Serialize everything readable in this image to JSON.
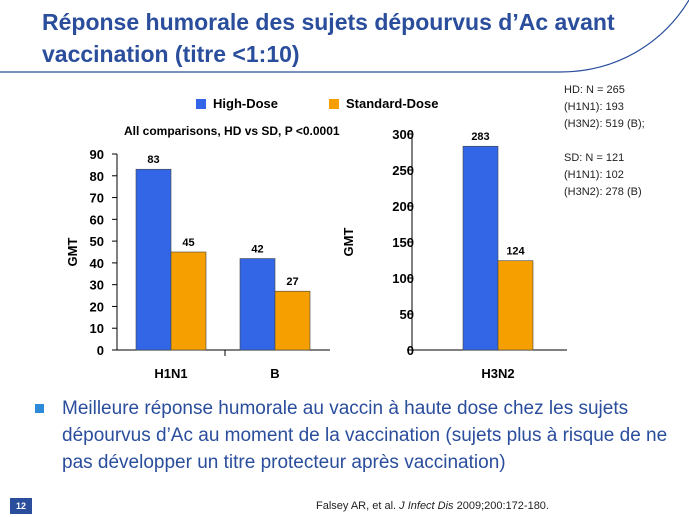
{
  "slide": {
    "title": "Réponse humorale des sujets dépourvus d’Ac avant vaccination (titre <1:10)",
    "page_number": "12",
    "bullet": "Meilleure réponse humorale au vaccin à haute dose chez les sujets dépourvus d’Ac au moment de la vaccination (sujets plus à risque de ne pas développer un titre protecteur après vaccination)",
    "citation": {
      "authors": "Falsey AR, et al. ",
      "journal": "J Infect Dis",
      "ref": " 2009;200:172-180."
    },
    "note": "All comparisons, HD vs SD, P <0.0001",
    "side_notes": [
      "HD: N = 265",
      "(H1N1): 193",
      "(H3N2): 519 (B);",
      "",
      "SD: N = 121",
      "(H1N1): 102",
      "(H3N2): 278 (B)"
    ],
    "colors": {
      "title": "#2a4d9c",
      "high_dose": "#3366e6",
      "standard_dose": "#f5a000",
      "accent": "#2d8ad8"
    }
  },
  "chart_data": [
    {
      "type": "bar",
      "categories": [
        "H1N1",
        "B"
      ],
      "series": [
        {
          "name": "High-Dose",
          "values": [
            83,
            42
          ]
        },
        {
          "name": "Standard-Dose",
          "values": [
            45,
            27
          ]
        }
      ],
      "ylabel": "GMT",
      "ylim": [
        0,
        90
      ],
      "yticks": [
        0,
        10,
        20,
        30,
        40,
        50,
        60,
        70,
        80,
        90
      ],
      "legend": "top"
    },
    {
      "type": "bar",
      "categories": [
        "H3N2"
      ],
      "series": [
        {
          "name": "High-Dose",
          "values": [
            283
          ]
        },
        {
          "name": "Standard-Dose",
          "values": [
            124
          ]
        }
      ],
      "ylabel": "GMT",
      "ylim": [
        0,
        300
      ],
      "yticks": [
        0,
        50,
        100,
        150,
        200,
        250,
        300
      ]
    }
  ]
}
